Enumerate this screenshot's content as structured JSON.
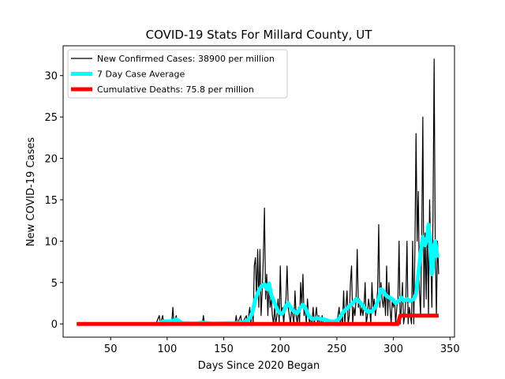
{
  "chart_data": {
    "type": "line",
    "title": "COVID-19 Stats For Millard County, UT",
    "xlabel": "Days Since 2020 Began",
    "ylabel": "New COVID-19 Cases",
    "xlim": [
      8,
      354
    ],
    "ylim": [
      -1.6,
      33.6
    ],
    "x_ticks": [
      50,
      100,
      150,
      200,
      250,
      300,
      350
    ],
    "y_ticks": [
      0,
      5,
      10,
      15,
      20,
      25,
      30
    ],
    "grid": false,
    "legend_position": "top-left",
    "series": [
      {
        "name": "New Confirmed Cases: 38900 per million",
        "color": "#000000",
        "kind": "daily",
        "points": [
          [
            20,
            0
          ],
          [
            90,
            0
          ],
          [
            93,
            1
          ],
          [
            94,
            0
          ],
          [
            96,
            1
          ],
          [
            97,
            0
          ],
          [
            104,
            0
          ],
          [
            105,
            2
          ],
          [
            106,
            0
          ],
          [
            108,
            1
          ],
          [
            109,
            0
          ],
          [
            131,
            0
          ],
          [
            132,
            1
          ],
          [
            133,
            0
          ],
          [
            160,
            0
          ],
          [
            161,
            1
          ],
          [
            162,
            0
          ],
          [
            165,
            1
          ],
          [
            166,
            0
          ],
          [
            170,
            1
          ],
          [
            171,
            0
          ],
          [
            173,
            2
          ],
          [
            174,
            0
          ],
          [
            175,
            2
          ],
          [
            176,
            0
          ],
          [
            177,
            7
          ],
          [
            178,
            8
          ],
          [
            179,
            3
          ],
          [
            180,
            9
          ],
          [
            181,
            2
          ],
          [
            182,
            9
          ],
          [
            183,
            1
          ],
          [
            184,
            4
          ],
          [
            185,
            8
          ],
          [
            186,
            14
          ],
          [
            187,
            3
          ],
          [
            188,
            6
          ],
          [
            189,
            1
          ],
          [
            190,
            5
          ],
          [
            191,
            2
          ],
          [
            192,
            3
          ],
          [
            193,
            1
          ],
          [
            194,
            0
          ],
          [
            195,
            2
          ],
          [
            196,
            0
          ],
          [
            197,
            1
          ],
          [
            198,
            3
          ],
          [
            199,
            0
          ],
          [
            200,
            7
          ],
          [
            201,
            1
          ],
          [
            202,
            2
          ],
          [
            203,
            0
          ],
          [
            204,
            2
          ],
          [
            205,
            3
          ],
          [
            206,
            7
          ],
          [
            207,
            2
          ],
          [
            208,
            1
          ],
          [
            209,
            0
          ],
          [
            210,
            2
          ],
          [
            211,
            1
          ],
          [
            212,
            0
          ],
          [
            213,
            4
          ],
          [
            214,
            1
          ],
          [
            215,
            0
          ],
          [
            216,
            2
          ],
          [
            217,
            0
          ],
          [
            218,
            5
          ],
          [
            219,
            2
          ],
          [
            220,
            6
          ],
          [
            221,
            1
          ],
          [
            222,
            2
          ],
          [
            223,
            0
          ],
          [
            224,
            3
          ],
          [
            225,
            1
          ],
          [
            226,
            0
          ],
          [
            227,
            1
          ],
          [
            228,
            0
          ],
          [
            229,
            2
          ],
          [
            230,
            0
          ],
          [
            231,
            1
          ],
          [
            232,
            2
          ],
          [
            233,
            0
          ],
          [
            234,
            1
          ],
          [
            235,
            0
          ],
          [
            236,
            0
          ],
          [
            237,
            1
          ],
          [
            238,
            0
          ],
          [
            239,
            0
          ],
          [
            250,
            0
          ],
          [
            251,
            1
          ],
          [
            252,
            2
          ],
          [
            253,
            0
          ],
          [
            254,
            1
          ],
          [
            255,
            0
          ],
          [
            256,
            4
          ],
          [
            257,
            0
          ],
          [
            258,
            2
          ],
          [
            259,
            4
          ],
          [
            260,
            0
          ],
          [
            261,
            1
          ],
          [
            262,
            5
          ],
          [
            263,
            7
          ],
          [
            264,
            0
          ],
          [
            265,
            2
          ],
          [
            266,
            1
          ],
          [
            267,
            3
          ],
          [
            268,
            9
          ],
          [
            269,
            2
          ],
          [
            270,
            3
          ],
          [
            271,
            1
          ],
          [
            272,
            2
          ],
          [
            273,
            1
          ],
          [
            274,
            2
          ],
          [
            275,
            5
          ],
          [
            276,
            0
          ],
          [
            277,
            1
          ],
          [
            278,
            3
          ],
          [
            279,
            2
          ],
          [
            280,
            0
          ],
          [
            281,
            5
          ],
          [
            282,
            2
          ],
          [
            283,
            3
          ],
          [
            284,
            1
          ],
          [
            285,
            2
          ],
          [
            286,
            4
          ],
          [
            287,
            12
          ],
          [
            288,
            2
          ],
          [
            289,
            5
          ],
          [
            290,
            3
          ],
          [
            291,
            2
          ],
          [
            292,
            4
          ],
          [
            293,
            1
          ],
          [
            294,
            7
          ],
          [
            295,
            1
          ],
          [
            296,
            5
          ],
          [
            297,
            2
          ],
          [
            298,
            0
          ],
          [
            299,
            3
          ],
          [
            300,
            2
          ],
          [
            301,
            3
          ],
          [
            302,
            0
          ],
          [
            303,
            2
          ],
          [
            304,
            3
          ],
          [
            305,
            10
          ],
          [
            306,
            0
          ],
          [
            307,
            2
          ],
          [
            308,
            5
          ],
          [
            309,
            0
          ],
          [
            310,
            1
          ],
          [
            311,
            3
          ],
          [
            312,
            10
          ],
          [
            313,
            0
          ],
          [
            314,
            2
          ],
          [
            315,
            1
          ],
          [
            316,
            0
          ],
          [
            317,
            10
          ],
          [
            318,
            0
          ],
          [
            319,
            9
          ],
          [
            320,
            23
          ],
          [
            321,
            10
          ],
          [
            322,
            16
          ],
          [
            323,
            4
          ],
          [
            324,
            1
          ],
          [
            325,
            10
          ],
          [
            326,
            25
          ],
          [
            327,
            2
          ],
          [
            328,
            11
          ],
          [
            329,
            3
          ],
          [
            330,
            12
          ],
          [
            331,
            1
          ],
          [
            332,
            15
          ],
          [
            333,
            8
          ],
          [
            334,
            2
          ],
          [
            335,
            13
          ],
          [
            336,
            32
          ],
          [
            337,
            9
          ],
          [
            338,
            1
          ],
          [
            339,
            10
          ],
          [
            340,
            6
          ]
        ]
      },
      {
        "name": "7 Day Case Average",
        "color": "#00ffff",
        "kind": "average",
        "points": [
          [
            93,
            0.15
          ],
          [
            98,
            0.3
          ],
          [
            105,
            0.35
          ],
          [
            108,
            0.55
          ],
          [
            110,
            0.4
          ],
          [
            113,
            0.1
          ],
          [
            125,
            0.05
          ],
          [
            131,
            0.15
          ],
          [
            135,
            0.1
          ],
          [
            140,
            0.05
          ],
          [
            163,
            0.1
          ],
          [
            168,
            0.2
          ],
          [
            172,
            0.5
          ],
          [
            175,
            1.2
          ],
          [
            178,
            3.0
          ],
          [
            181,
            4.0
          ],
          [
            183,
            4.5
          ],
          [
            186,
            4.8
          ],
          [
            188,
            4.2
          ],
          [
            190,
            4.9
          ],
          [
            192,
            3.5
          ],
          [
            195,
            2.5
          ],
          [
            198,
            1.5
          ],
          [
            201,
            1.2
          ],
          [
            203,
            1.5
          ],
          [
            205,
            2.2
          ],
          [
            207,
            2.5
          ],
          [
            209,
            2.0
          ],
          [
            212,
            1.5
          ],
          [
            215,
            1.3
          ],
          [
            218,
            2.0
          ],
          [
            220,
            2.3
          ],
          [
            222,
            2.0
          ],
          [
            225,
            1.0
          ],
          [
            228,
            0.6
          ],
          [
            232,
            0.7
          ],
          [
            236,
            0.6
          ],
          [
            240,
            0.5
          ],
          [
            244,
            0.3
          ],
          [
            248,
            0.3
          ],
          [
            252,
            0.6
          ],
          [
            256,
            1.5
          ],
          [
            260,
            2.0
          ],
          [
            264,
            2.5
          ],
          [
            267,
            3.0
          ],
          [
            270,
            2.7
          ],
          [
            273,
            2.2
          ],
          [
            277,
            1.5
          ],
          [
            281,
            1.5
          ],
          [
            284,
            2.0
          ],
          [
            287,
            3.0
          ],
          [
            289,
            4.2
          ],
          [
            291,
            4.0
          ],
          [
            293,
            3.5
          ],
          [
            296,
            3.2
          ],
          [
            299,
            3.0
          ],
          [
            302,
            2.5
          ],
          [
            305,
            2.8
          ],
          [
            307,
            3.2
          ],
          [
            309,
            2.8
          ],
          [
            312,
            3.0
          ],
          [
            315,
            2.8
          ],
          [
            318,
            3.0
          ],
          [
            320,
            3.6
          ],
          [
            322,
            6.0
          ],
          [
            324,
            8.5
          ],
          [
            326,
            10.5
          ],
          [
            328,
            9.5
          ],
          [
            330,
            10.5
          ],
          [
            331,
            12.0
          ],
          [
            332,
            10.5
          ],
          [
            333,
            8.5
          ],
          [
            334,
            6.0
          ],
          [
            335,
            7.0
          ],
          [
            336,
            9.5
          ],
          [
            337,
            10.0
          ],
          [
            338,
            9.0
          ],
          [
            339,
            8.0
          ]
        ]
      },
      {
        "name": "Cumulative Deaths: 75.8 per million",
        "color": "#ff0000",
        "kind": "cumulative",
        "points": [
          [
            20,
            0
          ],
          [
            304,
            0
          ],
          [
            306,
            1
          ],
          [
            340,
            1
          ]
        ]
      }
    ]
  }
}
